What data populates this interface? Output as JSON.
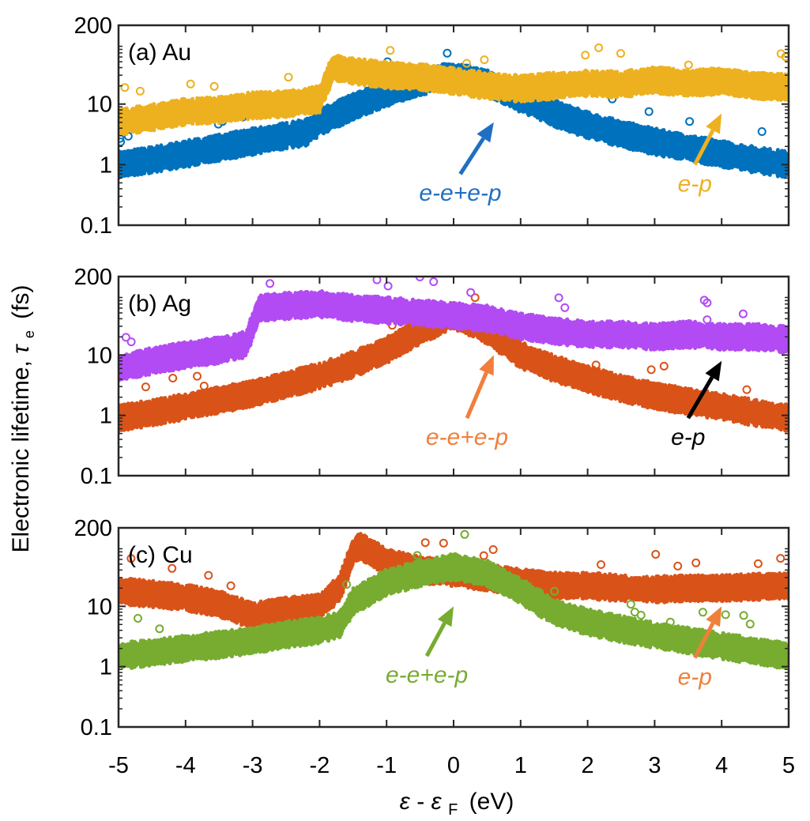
{
  "chart_data": [
    {
      "type": "scatter",
      "title": "(a) Au",
      "xlim": [
        -5,
        5
      ],
      "ylim": [
        0.1,
        200
      ],
      "yscale": "log",
      "yticks": [
        "0.1",
        "1",
        "10",
        "200"
      ],
      "annotations": [
        {
          "text": "e-e+e-p",
          "color": "#1f6fc4",
          "arrow_from": [
            0.1,
            0.7
          ],
          "arrow_to": [
            0.6,
            5
          ]
        },
        {
          "text": "e-p",
          "color": "#edb120",
          "arrow_from": [
            3.6,
            1.0
          ],
          "arrow_to": [
            4.0,
            7
          ]
        }
      ],
      "series": [
        {
          "color": "#0072bd",
          "x": [
            -5.0,
            -4.5,
            -4.0,
            -3.5,
            -3.0,
            -2.5,
            -2.2,
            -2.0,
            -1.5,
            -1.0,
            -0.5,
            0.0,
            0.5,
            1.0,
            1.5,
            2.0,
            2.5,
            3.0,
            3.5,
            4.0,
            4.5,
            5.0
          ],
          "y": [
            1.0,
            1.2,
            1.5,
            1.9,
            2.4,
            3.0,
            3.4,
            5.0,
            9.0,
            15,
            23,
            30,
            22,
            12,
            7.0,
            4.5,
            3.2,
            2.4,
            1.9,
            1.5,
            1.2,
            1.0
          ]
        },
        {
          "color": "#edb120",
          "x": [
            -5.0,
            -4.5,
            -4.0,
            -3.5,
            -3.0,
            -2.5,
            -2.0,
            -1.8,
            -1.5,
            -1.0,
            -0.5,
            0.0,
            0.5,
            1.0,
            1.5,
            2.0,
            2.5,
            3.0,
            3.5,
            4.0,
            4.5,
            5.0
          ],
          "y": [
            5.0,
            6.0,
            7.5,
            8.0,
            9.5,
            10.0,
            12.0,
            40,
            35,
            30,
            28,
            24,
            20,
            18,
            20,
            22,
            21,
            25,
            22,
            24,
            20,
            19
          ]
        }
      ]
    },
    {
      "type": "scatter",
      "title": "(b) Ag",
      "xlim": [
        -5,
        5
      ],
      "ylim": [
        0.1,
        200
      ],
      "yscale": "log",
      "yticks": [
        "0.1",
        "1",
        "10",
        "200"
      ],
      "annotations": [
        {
          "text": "e-e+e-p",
          "color": "#f07f3c",
          "arrow_from": [
            0.2,
            0.9
          ],
          "arrow_to": [
            0.6,
            10
          ]
        },
        {
          "text": "e-p",
          "color": "#000000",
          "arrow_from": [
            3.5,
            0.9
          ],
          "arrow_to": [
            4.0,
            8
          ]
        }
      ],
      "series": [
        {
          "color": "#d95319",
          "x": [
            -5.0,
            -4.5,
            -4.0,
            -3.5,
            -3.0,
            -2.5,
            -2.0,
            -1.5,
            -1.0,
            -0.5,
            0.0,
            0.5,
            1.0,
            1.5,
            2.0,
            2.5,
            3.0,
            3.5,
            4.0,
            4.5,
            5.0
          ],
          "y": [
            0.9,
            1.1,
            1.4,
            1.8,
            2.3,
            3.2,
            4.5,
            7.0,
            12,
            25,
            45,
            25,
            10,
            6.0,
            4.0,
            2.8,
            2.1,
            1.7,
            1.4,
            1.1,
            0.9
          ]
        },
        {
          "color": "#b24bf3",
          "x": [
            -5.0,
            -4.5,
            -4.0,
            -3.5,
            -3.1,
            -2.9,
            -2.5,
            -2.0,
            -1.5,
            -1.0,
            -0.5,
            0.0,
            0.5,
            1.0,
            1.5,
            2.0,
            2.5,
            3.0,
            3.5,
            4.0,
            4.5,
            5.0
          ],
          "y": [
            6.0,
            8.0,
            10,
            12,
            15,
            60,
            65,
            70,
            60,
            55,
            50,
            45,
            40,
            30,
            25,
            22,
            22,
            20,
            22,
            20,
            20,
            18
          ]
        }
      ]
    },
    {
      "type": "scatter",
      "title": "(c) Cu",
      "xlim": [
        -5,
        5
      ],
      "ylim": [
        0.1,
        200
      ],
      "yscale": "log",
      "yticks": [
        "0.1",
        "1",
        "10",
        "200"
      ],
      "annotations": [
        {
          "text": "e-e+e-p",
          "color": "#77ac30",
          "arrow_from": [
            -0.4,
            1.5
          ],
          "arrow_to": [
            0.0,
            10
          ]
        },
        {
          "text": "e-p",
          "color": "#f07f3c",
          "arrow_from": [
            3.6,
            1.4
          ],
          "arrow_to": [
            4.0,
            10
          ]
        }
      ],
      "series": [
        {
          "color": "#d95319",
          "x": [
            -5.0,
            -4.5,
            -4.0,
            -3.5,
            -3.0,
            -2.5,
            -2.0,
            -1.7,
            -1.5,
            -1.4,
            -1.0,
            -0.5,
            0.0,
            0.5,
            1.0,
            1.5,
            2.0,
            2.5,
            3.0,
            3.5,
            4.0,
            4.5,
            5.0
          ],
          "y": [
            18,
            16,
            14,
            11,
            7.0,
            8.5,
            10,
            20,
            80,
            100,
            55,
            40,
            35,
            30,
            25,
            22,
            22,
            20,
            19,
            20,
            20,
            21,
            22
          ]
        },
        {
          "color": "#77ac30",
          "x": [
            -5.0,
            -4.5,
            -4.0,
            -3.5,
            -3.0,
            -2.5,
            -2.0,
            -1.7,
            -1.5,
            -1.0,
            -0.5,
            0.0,
            0.5,
            1.0,
            1.5,
            2.0,
            2.5,
            3.0,
            3.5,
            4.0,
            4.5,
            5.0
          ],
          "y": [
            1.5,
            1.7,
            2.0,
            2.3,
            2.7,
            3.4,
            4.0,
            5.0,
            12,
            25,
            35,
            45,
            35,
            18,
            8.0,
            5.5,
            4.2,
            3.3,
            2.7,
            2.2,
            1.8,
            1.5
          ]
        }
      ]
    }
  ],
  "axes": {
    "y_title": "Electronic lifetime,",
    "y_symbol": "τ",
    "y_sub": "e",
    "y_unit": "(fs)",
    "x_eps": "ε",
    "x_dash": "-",
    "x_eps2": "ε",
    "x_sub": "F",
    "x_unit": "(eV)",
    "xticks": [
      "-5",
      "-4",
      "-3",
      "-2",
      "-1",
      "0",
      "1",
      "2",
      "3",
      "4",
      "5"
    ]
  }
}
